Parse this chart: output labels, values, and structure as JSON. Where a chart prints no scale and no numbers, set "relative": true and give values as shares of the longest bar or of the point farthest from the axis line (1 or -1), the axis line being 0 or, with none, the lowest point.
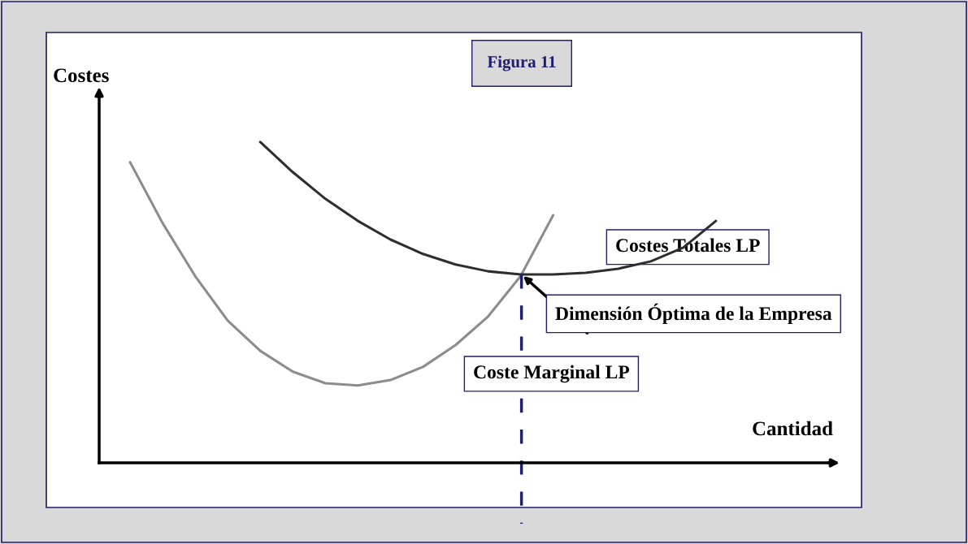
{
  "chart_data": {
    "type": "line",
    "relative": true,
    "title": "Figura 11",
    "xlabel": "Cantidad",
    "ylabel": "Costes",
    "categories": [
      null,
      null,
      null,
      null,
      null,
      null,
      null,
      null,
      null,
      null,
      null,
      null,
      null,
      null,
      null,
      null,
      null,
      null,
      null
    ],
    "series": [
      {
        "name": "Coste Marginal LP",
        "color": "#8c8c8c",
        "values": [
          0.937,
          0.747,
          0.582,
          0.443,
          0.349,
          0.284,
          0.248,
          0.241,
          0.258,
          0.299,
          0.367,
          0.456,
          0.582,
          0.772,
          null,
          null,
          null,
          null,
          null
        ]
      },
      {
        "name": "Costes Totales LP",
        "color": "#2e2e2e",
        "values": [
          null,
          null,
          null,
          null,
          1,
          0.906,
          0.823,
          0.754,
          0.696,
          0.651,
          0.618,
          0.597,
          0.587,
          0.587,
          0.592,
          0.605,
          0.628,
          0.671,
          0.754
        ]
      }
    ],
    "annotations": [
      "Dimensión Óptima de la Empresa"
    ],
    "marker": "none",
    "line_style": "solid",
    "grid": false,
    "legend": false
  }
}
